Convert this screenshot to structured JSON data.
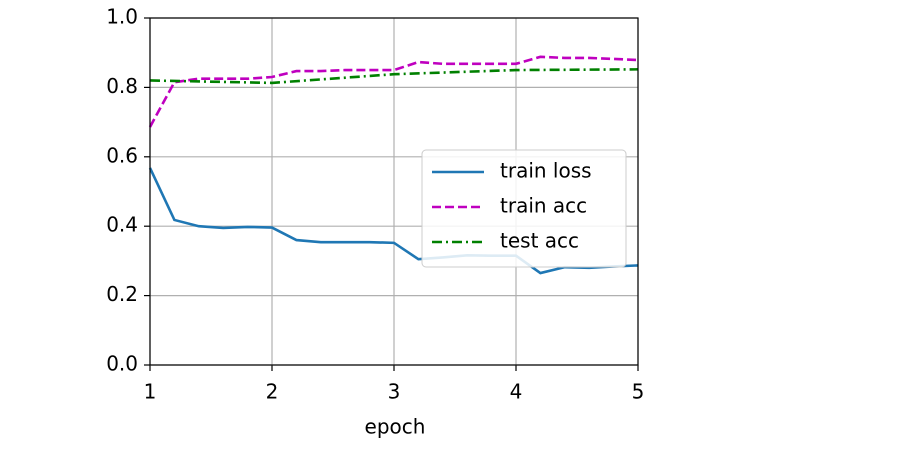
{
  "chart_data": {
    "type": "line",
    "x_label": "epoch",
    "xlim": [
      1,
      5
    ],
    "ylim": [
      0,
      1
    ],
    "xticks": [
      1,
      2,
      3,
      4,
      5
    ],
    "yticks": [
      {
        "value": 0,
        "label": "0.0"
      },
      0.2,
      0.4,
      0.6,
      0.8,
      {
        "value": 1,
        "label": "1.0"
      }
    ],
    "grid": true,
    "legend": "center right",
    "series": [
      {
        "name": "train loss",
        "color": "#1f77b4",
        "style": "solid",
        "x": [
          1,
          1.2,
          1.4,
          1.6,
          1.8,
          2,
          2.2,
          2.4,
          2.6,
          2.8,
          3,
          3.2,
          3.4,
          3.6,
          3.8,
          4,
          4.2,
          4.4,
          4.6,
          4.8,
          5
        ],
        "values": [
          0.568,
          0.418,
          0.4,
          0.395,
          0.398,
          0.396,
          0.36,
          0.354,
          0.354,
          0.354,
          0.352,
          0.305,
          0.31,
          0.316,
          0.315,
          0.315,
          0.265,
          0.282,
          0.28,
          0.284,
          0.287
        ]
      },
      {
        "name": "train acc",
        "color": "#bf00bf",
        "style": "dashed",
        "x": [
          1,
          1.2,
          1.4,
          1.6,
          1.8,
          2,
          2.2,
          2.4,
          2.6,
          2.8,
          3,
          3.2,
          3.4,
          3.6,
          3.8,
          4,
          4.2,
          4.4,
          4.6,
          4.8,
          5
        ],
        "values": [
          0.686,
          0.815,
          0.825,
          0.825,
          0.825,
          0.83,
          0.847,
          0.847,
          0.85,
          0.85,
          0.85,
          0.873,
          0.868,
          0.868,
          0.868,
          0.868,
          0.888,
          0.885,
          0.885,
          0.882,
          0.879
        ]
      },
      {
        "name": "test acc",
        "color": "#008000",
        "style": "dashdot",
        "x": [
          1,
          2,
          3,
          4,
          5
        ],
        "values": [
          0.82,
          0.813,
          0.838,
          0.85,
          0.852
        ]
      }
    ]
  }
}
